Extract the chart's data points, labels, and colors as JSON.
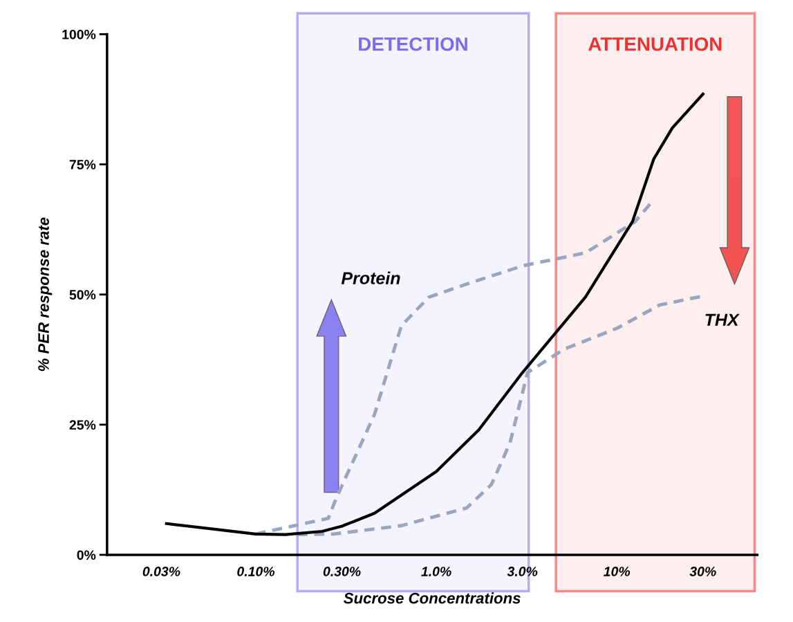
{
  "chart_data": {
    "type": "line",
    "xlabel": "Sucrose Concentrations",
    "ylabel": "% PER response rate",
    "log": "x",
    "xlim": [
      0.015,
      60
    ],
    "ylim": [
      0,
      100
    ],
    "xticks": [
      {
        "value": 0.03,
        "label": "0.03%"
      },
      {
        "value": 0.1,
        "label": "0.10%"
      },
      {
        "value": 0.3,
        "label": "0.30%"
      },
      {
        "value": 1,
        "label": "1.0%"
      },
      {
        "value": 3,
        "label": "3.0%"
      },
      {
        "value": 10,
        "label": "10%"
      },
      {
        "value": 30,
        "label": "30%"
      }
    ],
    "yticks": [
      {
        "value": 0,
        "label": "0%"
      },
      {
        "value": 25,
        "label": "25%"
      },
      {
        "value": 50,
        "label": "50%"
      },
      {
        "value": 75,
        "label": "75%"
      },
      {
        "value": 100,
        "label": "100%"
      }
    ],
    "grid": false,
    "legend": false,
    "marker": "none",
    "series": [
      {
        "color": "#000000",
        "line_style": "solid",
        "x": [
          0.032,
          0.1,
          0.146,
          0.233,
          0.3,
          0.455,
          1,
          1.72,
          3,
          6.7,
          12.2,
          16,
          20.3,
          30
        ],
        "values": [
          6,
          4,
          3.9,
          4.5,
          5.5,
          8,
          16,
          24,
          35,
          49.5,
          64,
          76,
          82,
          88.5
        ]
      },
      {
        "color": "#9aa6bf",
        "line_style": "dashed",
        "x": [
          0.1,
          0.252,
          0.28,
          0.455,
          0.64,
          0.91,
          1.47,
          3,
          6.7,
          12.6,
          15.4
        ],
        "values": [
          4,
          7,
          11,
          27,
          44,
          49.5,
          52,
          55.5,
          58,
          64,
          67.5
        ]
      },
      {
        "color": "#9aa6bf",
        "line_style": "dashed",
        "x": [
          0.17,
          0.27,
          0.64,
          1.47,
          2.02,
          2.56,
          3.2,
          5.1,
          10,
          17.3,
          30
        ],
        "values": [
          3.9,
          4,
          5.6,
          9,
          13.5,
          21.5,
          35,
          39.5,
          43.5,
          48,
          49.7
        ]
      }
    ],
    "bands": [
      {
        "axis": "x",
        "from": 0.17,
        "to": 3.25,
        "label": "DETECTION",
        "color": "#7a6cf0"
      },
      {
        "axis": "x",
        "from": 4.6,
        "to": 58,
        "label": "ATTENUATION",
        "color": "#f03030"
      }
    ],
    "annotations": [
      "Protein",
      "THX"
    ]
  }
}
